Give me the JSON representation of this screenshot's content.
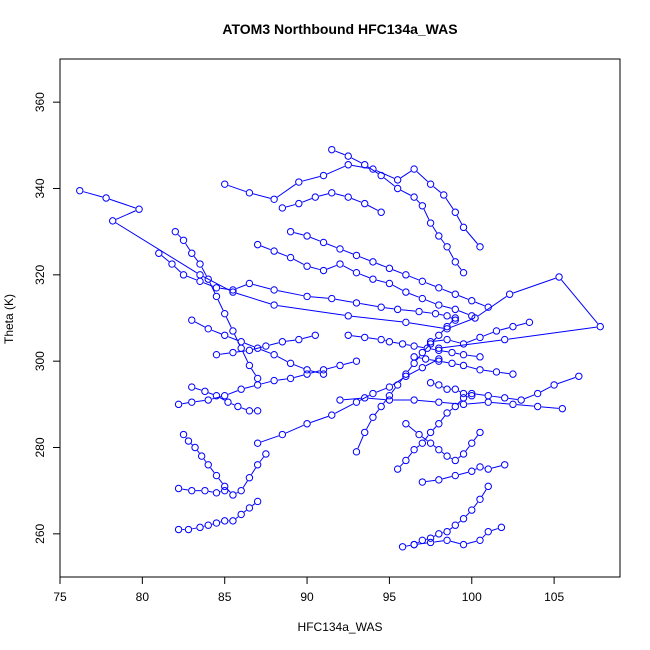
{
  "chart_data": {
    "type": "line",
    "title": "ATOM3 Northbound HFC134a_WAS",
    "xlabel": "HFC134a_WAS",
    "ylabel": "Theta (K)",
    "xlim": [
      75,
      109
    ],
    "ylim": [
      250,
      370
    ],
    "xticks": [
      "75",
      "80",
      "85",
      "90",
      "95",
      "100",
      "105"
    ],
    "yticks": [
      "260",
      "280",
      "300",
      "320",
      "340",
      "360"
    ],
    "grid": false,
    "legend": "none",
    "marker": "open-circle",
    "color": "#0000ff",
    "series": [
      {
        "x": [
          76.2,
          77.8,
          79.8,
          78.2,
          83.5,
          85.5,
          88.0,
          92.5,
          96.0,
          98.5,
          100.2,
          102.3,
          105.3,
          107.8,
          102.0,
          98.0
        ],
        "y": [
          339.5,
          337.8,
          335.2,
          332.5,
          320.0,
          316.0,
          313.0,
          310.5,
          309.0,
          307.5,
          310.0,
          315.5,
          319.5,
          308.0,
          305.0,
          303.0
        ]
      },
      {
        "x": [
          81.0,
          81.8,
          82.5,
          83.5,
          84.5,
          85.5,
          86.5,
          88.0,
          90.0,
          91.5,
          93.0,
          94.5,
          95.5,
          96.8,
          97.8,
          98.5,
          99.0
        ],
        "y": [
          325.0,
          322.5,
          320.0,
          318.5,
          317.0,
          316.5,
          318.0,
          316.5,
          315.0,
          314.5,
          313.5,
          312.5,
          312.0,
          311.5,
          311.0,
          310.5,
          309.5
        ]
      },
      {
        "x": [
          85.0,
          86.5,
          88.0,
          89.5,
          91.0,
          92.5,
          94.0,
          95.5,
          96.5,
          97.5,
          98.3,
          99.0,
          99.5,
          100.5
        ],
        "y": [
          341.0,
          339.0,
          337.5,
          341.5,
          343.0,
          345.5,
          344.5,
          342.0,
          344.5,
          341.0,
          338.5,
          334.5,
          331.0,
          326.5
        ]
      },
      {
        "x": [
          91.5,
          92.5,
          93.5,
          94.5,
          95.5,
          96.5,
          97.0,
          97.5,
          98.0,
          98.5,
          99.0,
          99.5
        ],
        "y": [
          349.0,
          347.5,
          345.5,
          343.0,
          340.0,
          338.0,
          336.0,
          332.0,
          329.0,
          326.5,
          323.0,
          320.5
        ]
      },
      {
        "x": [
          82.0,
          82.5,
          83.0,
          83.5,
          84.0,
          84.5,
          85.0,
          85.5,
          86.0,
          86.5,
          87.0
        ],
        "y": [
          330.0,
          328.0,
          325.0,
          322.5,
          319.0,
          315.0,
          311.0,
          307.0,
          303.0,
          299.0,
          296.0
        ]
      },
      {
        "x": [
          87.0,
          88.0,
          89.0,
          90.0,
          91.0,
          92.0,
          93.0,
          94.0,
          95.0,
          96.0,
          97.0,
          98.0,
          99.0,
          100.0
        ],
        "y": [
          327.0,
          325.5,
          324.0,
          322.0,
          321.0,
          322.5,
          320.5,
          319.0,
          318.0,
          316.0,
          314.5,
          313.0,
          312.0,
          310.5
        ]
      },
      {
        "x": [
          83.0,
          84.0,
          85.0,
          86.0,
          87.0,
          88.0,
          89.0,
          90.0,
          91.0
        ],
        "y": [
          309.5,
          307.5,
          306.0,
          304.5,
          303.0,
          301.5,
          299.5,
          298.0,
          297.0
        ]
      },
      {
        "x": [
          82.2,
          83.0,
          84.0,
          85.0,
          86.0,
          87.0,
          88.0,
          89.0,
          90.0,
          91.0,
          92.0,
          93.0
        ],
        "y": [
          290.0,
          290.5,
          291.0,
          292.0,
          293.5,
          294.5,
          295.5,
          296.0,
          297.0,
          298.0,
          299.0,
          300.0
        ]
      },
      {
        "x": [
          83.0,
          83.8,
          84.5,
          85.2,
          85.8,
          86.5,
          87.0
        ],
        "y": [
          294.0,
          293.0,
          292.0,
          290.5,
          289.5,
          288.5,
          288.5
        ]
      },
      {
        "x": [
          82.5,
          82.8,
          83.2,
          83.6,
          84.0,
          84.5,
          85.0,
          85.5,
          86.0,
          86.5,
          87.0,
          87.5
        ],
        "y": [
          283.0,
          281.5,
          280.0,
          278.0,
          276.0,
          273.5,
          271.0,
          269.0,
          270.0,
          273.0,
          276.0,
          278.5
        ]
      },
      {
        "x": [
          82.2,
          83.0,
          83.8,
          84.5,
          85.0
        ],
        "y": [
          270.5,
          270.0,
          270.0,
          269.5,
          270.0
        ]
      },
      {
        "x": [
          82.2,
          82.8,
          83.5,
          84.0,
          84.5,
          85.0,
          85.5,
          86.0,
          86.5,
          87.0
        ],
        "y": [
          261.0,
          261.0,
          261.5,
          262.0,
          262.5,
          263.0,
          263.0,
          264.5,
          266.0,
          267.5
        ]
      },
      {
        "x": [
          87.0,
          88.5,
          90.0,
          91.5,
          93.0,
          94.0,
          95.0,
          96.0,
          97.0,
          98.0
        ],
        "y": [
          281.0,
          283.0,
          285.5,
          287.5,
          290.5,
          292.5,
          294.0,
          296.5,
          298.5,
          300.5
        ]
      },
      {
        "x": [
          93.0,
          93.5,
          94.0,
          94.5,
          95.0,
          95.5,
          96.0,
          96.5,
          97.0,
          97.5,
          98.0,
          98.5,
          99.0
        ],
        "y": [
          279.0,
          283.5,
          287.0,
          289.5,
          292.0,
          294.5,
          297.0,
          299.5,
          302.0,
          304.0,
          306.0,
          308.0,
          310.0
        ]
      },
      {
        "x": [
          92.0,
          93.5,
          95.0,
          96.5,
          98.0,
          99.5,
          101.0,
          102.5,
          104.0,
          105.5
        ],
        "y": [
          291.0,
          291.5,
          291.0,
          291.0,
          290.5,
          290.0,
          290.5,
          290.0,
          289.5,
          289.0
        ]
      },
      {
        "x": [
          95.5,
          96.0,
          96.5,
          97.0,
          97.5,
          98.0,
          98.5,
          99.0,
          99.5,
          100.0
        ],
        "y": [
          275.0,
          277.0,
          279.5,
          281.0,
          283.5,
          285.5,
          288.0,
          289.5,
          291.5,
          292.0
        ]
      },
      {
        "x": [
          95.8,
          96.5,
          97.0,
          97.5,
          98.0,
          98.5,
          99.0,
          99.5,
          100.0,
          100.5,
          101.0
        ],
        "y": [
          257.0,
          257.5,
          258.5,
          259.0,
          260.0,
          260.5,
          262.0,
          263.5,
          265.5,
          268.0,
          271.0
        ]
      },
      {
        "x": [
          96.5,
          97.5,
          98.5,
          99.5,
          100.5,
          101.0,
          101.8
        ],
        "y": [
          257.5,
          258.0,
          258.5,
          257.5,
          258.5,
          260.5,
          261.5
        ]
      },
      {
        "x": [
          97.0,
          98.0,
          99.0,
          100.0,
          100.5,
          101.0,
          102.0
        ],
        "y": [
          272.0,
          272.5,
          273.5,
          274.5,
          275.5,
          275.0,
          276.0
        ]
      },
      {
        "x": [
          97.5,
          98.0,
          98.5,
          99.0,
          99.5,
          100.0,
          101.0,
          102.0,
          103.0,
          104.0,
          105.0,
          106.5
        ],
        "y": [
          295.0,
          294.5,
          293.5,
          293.5,
          292.5,
          292.5,
          292.0,
          291.5,
          291.0,
          292.5,
          294.5,
          296.5
        ]
      },
      {
        "x": [
          96.0,
          96.8,
          97.5,
          98.0,
          98.5,
          99.0,
          99.5,
          100.0,
          100.5
        ],
        "y": [
          285.5,
          283.0,
          281.0,
          279.5,
          278.0,
          277.0,
          278.5,
          281.0,
          283.5
        ]
      },
      {
        "x": [
          96.5,
          97.2,
          98.0,
          98.8,
          99.5,
          100.5,
          101.5,
          102.5
        ],
        "y": [
          301.0,
          300.5,
          300.0,
          299.5,
          299.0,
          298.0,
          297.5,
          297.0
        ]
      },
      {
        "x": [
          92.5,
          93.5,
          94.5,
          95.0,
          95.8,
          96.5,
          97.3,
          98.0,
          98.8,
          99.5,
          100.5
        ],
        "y": [
          306.0,
          305.5,
          305.0,
          304.5,
          304.0,
          303.5,
          303.0,
          302.5,
          302.0,
          301.5,
          301.0
        ]
      },
      {
        "x": [
          89.0,
          90.0,
          91.0,
          92.0,
          93.0,
          94.0,
          95.0,
          96.0,
          97.0,
          98.0,
          99.0,
          100.0,
          101.0
        ],
        "y": [
          330.0,
          329.0,
          327.5,
          326.0,
          324.5,
          323.0,
          321.5,
          320.0,
          318.5,
          317.0,
          315.5,
          314.0,
          312.5
        ]
      },
      {
        "x": [
          88.5,
          89.5,
          90.5,
          91.5,
          92.5,
          93.5,
          94.5
        ],
        "y": [
          335.5,
          336.5,
          338.0,
          339.0,
          338.0,
          336.5,
          334.5
        ]
      },
      {
        "x": [
          84.5,
          85.5,
          86.5,
          87.5,
          88.5,
          89.5,
          90.5
        ],
        "y": [
          301.5,
          302.0,
          302.5,
          303.5,
          304.5,
          305.0,
          306.0
        ]
      },
      {
        "x": [
          97.5,
          98.5,
          99.5,
          100.5,
          101.5,
          102.5,
          103.5
        ],
        "y": [
          304.5,
          305.0,
          304.0,
          305.5,
          307.0,
          308.0,
          309.0
        ]
      }
    ]
  }
}
